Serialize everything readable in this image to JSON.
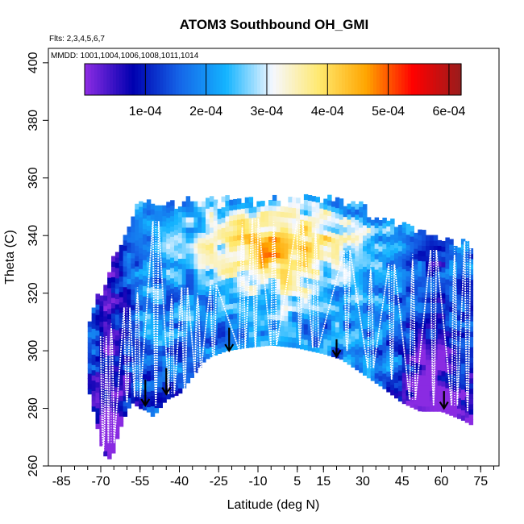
{
  "chart_data": {
    "type": "heatmap",
    "title": "ATOM3 Southbound OH_GMI",
    "flights_note": "Flts: 2,3,4,5,6,7",
    "dates_note": "MMDD: 1001,1004,1006,1008,1011,1014",
    "xlabel": "Latitude (deg N)",
    "ylabel": "Theta (C)",
    "xlim": [
      -90,
      82
    ],
    "ylim": [
      260,
      405
    ],
    "x_ticks": [
      -85,
      -70,
      -55,
      -40,
      -25,
      -10,
      5,
      15,
      30,
      45,
      60,
      75
    ],
    "x_tick_labels": [
      "-85",
      "-70",
      "-55",
      "-40",
      "-25",
      "-10",
      "5",
      "15",
      "30",
      "45",
      "60",
      "75"
    ],
    "y_ticks": [
      260,
      280,
      300,
      320,
      340,
      360,
      380,
      400
    ],
    "y_tick_labels": [
      "260",
      "280",
      "300",
      "320",
      "340",
      "360",
      "380",
      "400"
    ],
    "colorbar": {
      "range": [
        0,
        0.00062
      ],
      "ticks": [
        0.0001,
        0.0002,
        0.0003,
        0.0004,
        0.0005,
        0.0006
      ],
      "tick_labels": [
        "1e-04",
        "2e-04",
        "3e-04",
        "4e-04",
        "5e-04",
        "6e-04"
      ],
      "colors": [
        "#8a2be2",
        "#0000b0",
        "#1565e8",
        "#14b4ff",
        "#f6f8ff",
        "#ffe96e",
        "#ffa500",
        "#ff0000",
        "#9b1c1c"
      ]
    },
    "field_top_theta": 351,
    "field_bottom": {
      "lat": [
        -75,
        -72,
        -69,
        -66,
        -63,
        -60,
        -58,
        -55,
        -52,
        -50,
        -45,
        -40,
        -35,
        -30,
        -25,
        -22,
        -15,
        -5,
        5,
        15,
        22,
        30,
        38,
        45,
        52,
        60,
        68,
        72
      ],
      "theta": [
        288,
        276,
        264,
        262,
        272,
        279,
        282,
        280,
        279,
        277,
        283,
        285,
        291,
        297,
        299,
        300,
        301,
        302,
        301,
        299,
        297,
        292,
        287,
        282,
        279,
        279,
        276,
        274
      ]
    },
    "high_oh_region": {
      "lat": [
        -30,
        25
      ],
      "theta": [
        318,
        350
      ],
      "approx_value": 0.00038
    },
    "arrows": [
      {
        "lat": -53,
        "theta_top": 290,
        "theta_bottom": 281
      },
      {
        "lat": -45,
        "theta_top": 294,
        "theta_bottom": 285
      },
      {
        "lat": -21,
        "theta_top": 308,
        "theta_bottom": 300
      },
      {
        "lat": 20,
        "theta_top": 304,
        "theta_bottom": 298
      },
      {
        "lat": 61,
        "theta_top": 286,
        "theta_bottom": 280
      }
    ],
    "flight_tracks": {
      "columns": [
        {
          "lat": -69,
          "theta_low": 265,
          "theta_high": 305
        },
        {
          "lat": -66,
          "theta_low": 268,
          "theta_high": 310
        },
        {
          "lat": -60,
          "theta_low": 282,
          "theta_high": 315
        },
        {
          "lat": -56,
          "theta_low": 284,
          "theta_high": 322
        },
        {
          "lat": -49,
          "theta_low": 281,
          "theta_high": 345
        },
        {
          "lat": -43,
          "theta_low": 285,
          "theta_high": 320
        },
        {
          "lat": -38,
          "theta_low": 287,
          "theta_high": 322
        },
        {
          "lat": -33,
          "theta_low": 292,
          "theta_high": 320
        },
        {
          "lat": -27,
          "theta_low": 296,
          "theta_high": 323
        },
        {
          "lat": -16,
          "theta_low": 300,
          "theta_high": 345
        },
        {
          "lat": -11,
          "theta_low": 301,
          "theta_high": 346
        },
        {
          "lat": -4,
          "theta_low": 302,
          "theta_high": 345
        },
        {
          "lat": 6,
          "theta_low": 302,
          "theta_high": 345
        },
        {
          "lat": 12,
          "theta_low": 301,
          "theta_high": 344
        },
        {
          "lat": 24,
          "theta_low": 300,
          "theta_high": 335
        },
        {
          "lat": 33,
          "theta_low": 294,
          "theta_high": 330
        },
        {
          "lat": 41,
          "theta_low": 290,
          "theta_high": 330
        },
        {
          "lat": 49,
          "theta_low": 283,
          "theta_high": 334
        },
        {
          "lat": 57,
          "theta_low": 281,
          "theta_high": 335
        },
        {
          "lat": 65,
          "theta_low": 281,
          "theta_high": 336
        },
        {
          "lat": 70,
          "theta_low": 279,
          "theta_high": 338
        }
      ]
    }
  }
}
